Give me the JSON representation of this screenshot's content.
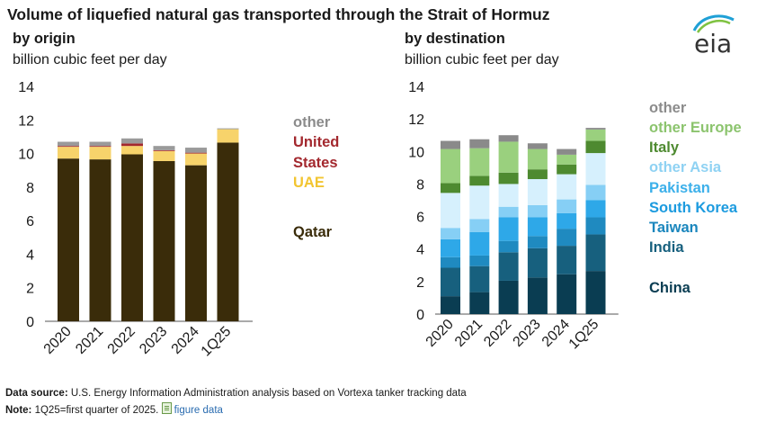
{
  "title": "Volume of liquefied natural gas transported through the Strait of Hormuz",
  "logo_text": "eia",
  "footer": {
    "source_label": "Data source:",
    "source_text": "U.S. Energy Information Administration analysis based on Vortexa tanker tracking data",
    "note_label": "Note:",
    "note_text": "1Q25=first quarter of 2025.",
    "link_text": "figure data"
  },
  "chart_data": [
    {
      "type": "bar",
      "stacked": true,
      "subtitle": "by origin",
      "ylabel": "billion cubic feet per day",
      "ylim": [
        0,
        14
      ],
      "yticks": [
        0,
        2,
        4,
        6,
        8,
        10,
        12,
        14
      ],
      "categories": [
        "2020",
        "2021",
        "2022",
        "2023",
        "2024",
        "1Q25"
      ],
      "series": [
        {
          "name": "Qatar",
          "color": "#3a2c0a",
          "label_color": "#3a2c0a",
          "values": [
            9.7,
            9.65,
            9.95,
            9.55,
            9.3,
            10.65
          ]
        },
        {
          "name": "UAE",
          "color": "#f7d36b",
          "label_color": "#f2c531",
          "values": [
            0.7,
            0.75,
            0.5,
            0.6,
            0.7,
            0.8
          ]
        },
        {
          "name": "United States",
          "color": "#a3282e",
          "label_color": "#a3282e",
          "values": [
            0.05,
            0.05,
            0.15,
            0.05,
            0.05,
            0.0
          ]
        },
        {
          "name": "other",
          "color": "#9a9a9a",
          "label_color": "#8c8c8c",
          "values": [
            0.25,
            0.25,
            0.3,
            0.25,
            0.3,
            0.05
          ]
        }
      ]
    },
    {
      "type": "bar",
      "stacked": true,
      "subtitle": "by destination",
      "ylabel": "billion cubic feet per day",
      "ylim": [
        0,
        14
      ],
      "yticks": [
        0,
        2,
        4,
        6,
        8,
        10,
        12,
        14
      ],
      "categories": [
        "2020",
        "2021",
        "2022",
        "2023",
        "2024",
        "1Q25"
      ],
      "series": [
        {
          "name": "China",
          "color": "#0a3d52",
          "label_color": "#0a3d52",
          "values": [
            1.1,
            1.35,
            2.05,
            2.25,
            2.45,
            2.65
          ]
        },
        {
          "name": "India",
          "color": "#17607e",
          "label_color": "#17607e",
          "values": [
            1.75,
            1.6,
            1.75,
            1.8,
            1.75,
            2.25
          ]
        },
        {
          "name": "Taiwan",
          "color": "#1f8ac0",
          "label_color": "#1a86bd",
          "values": [
            0.65,
            0.65,
            0.7,
            0.75,
            1.05,
            1.05
          ]
        },
        {
          "name": "South Korea",
          "color": "#2ea8e8",
          "label_color": "#1c9bdf",
          "values": [
            1.1,
            1.45,
            1.45,
            1.15,
            0.95,
            1.05
          ]
        },
        {
          "name": "Pakistan",
          "color": "#86cff5",
          "label_color": "#3cb0ea",
          "values": [
            0.7,
            0.8,
            0.65,
            0.75,
            0.85,
            0.95
          ]
        },
        {
          "name": "other Asia",
          "color": "#d6f0fd",
          "label_color": "#8fd2f3",
          "values": [
            2.15,
            2.05,
            1.4,
            1.6,
            1.55,
            1.95
          ]
        },
        {
          "name": "Italy",
          "color": "#4e8a30",
          "label_color": "#4e8a30",
          "values": [
            0.6,
            0.6,
            0.7,
            0.6,
            0.6,
            0.75
          ]
        },
        {
          "name": "other Europe",
          "color": "#9ad07e",
          "label_color": "#8cc46e",
          "values": [
            2.1,
            1.7,
            1.9,
            1.25,
            0.6,
            0.7
          ]
        },
        {
          "name": "other",
          "color": "#8a8a8a",
          "label_color": "#8c8c8c",
          "values": [
            0.5,
            0.55,
            0.4,
            0.35,
            0.35,
            0.1
          ]
        }
      ]
    }
  ]
}
